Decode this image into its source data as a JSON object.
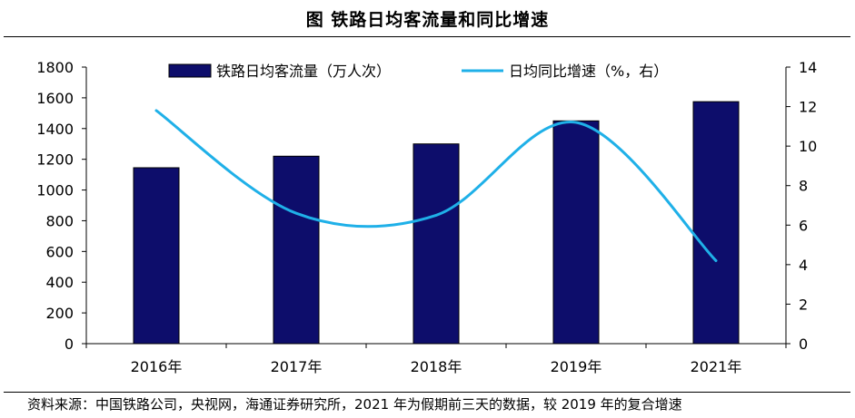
{
  "title": "图  铁路日均客流量和同比增速",
  "source": "资料来源：中国铁路公司，央视网，海通证券研究所，2021 年为假期前三天的数据，较 2019 年的复合增速",
  "chart_data": {
    "type": "bar",
    "categories": [
      "2016年",
      "2017年",
      "2018年",
      "2019年",
      "2021年"
    ],
    "series": [
      {
        "name": "铁路日均客流量（万人次）",
        "type": "bar",
        "axis": "left",
        "values": [
          1145,
          1220,
          1300,
          1450,
          1575
        ],
        "color": "#0d0d6b"
      },
      {
        "name": "日均同比增速（%，右）",
        "type": "line",
        "axis": "right",
        "values": [
          11.8,
          6.6,
          6.5,
          11.2,
          4.2
        ],
        "color": "#1fb0e8"
      }
    ],
    "y_left": {
      "min": 0,
      "max": 1800,
      "step": 200,
      "ticks": [
        "0",
        "200",
        "400",
        "600",
        "800",
        "1000",
        "1200",
        "1400",
        "1600",
        "1800"
      ]
    },
    "y_right": {
      "min": 0,
      "max": 14,
      "step": 2,
      "ticks": [
        "0",
        "2",
        "4",
        "6",
        "8",
        "10",
        "12",
        "14"
      ]
    },
    "legend": "top-center",
    "grid": false
  }
}
